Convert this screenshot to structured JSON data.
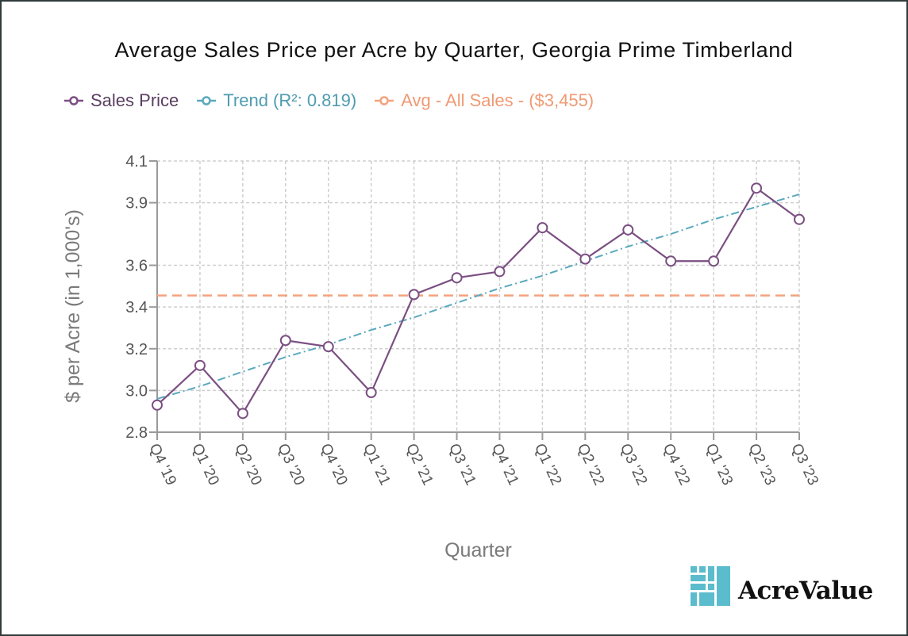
{
  "chart_data": {
    "type": "line",
    "title": "Average Sales Price per Acre by Quarter, Georgia Prime Timberland",
    "xlabel": "Quarter",
    "ylabel": "$ per Acre (in 1,000's)",
    "categories": [
      "Q4 '19",
      "Q1 '20",
      "Q2 '20",
      "Q3 '20",
      "Q4 '20",
      "Q1 '21",
      "Q2 '21",
      "Q3 '21",
      "Q4 '21",
      "Q1 '22",
      "Q2 '22",
      "Q3 '22",
      "Q4 '22",
      "Q1 '23",
      "Q2 '23",
      "Q3 '23"
    ],
    "ylim": [
      2.8,
      4.1
    ],
    "yticks": [
      2.8,
      3.0,
      3.2,
      3.4,
      3.6,
      3.9,
      4.1
    ],
    "ytick_labels": [
      "2.8",
      "3.0",
      "3.2",
      "3.4",
      "3.6",
      "3.9",
      "4.1"
    ],
    "grid": true,
    "series": [
      {
        "name": "Sales Price",
        "color": "#7b4f82",
        "style": "solid-markers",
        "values": [
          2.93,
          3.12,
          2.89,
          3.24,
          3.21,
          2.99,
          3.46,
          3.54,
          3.57,
          3.78,
          3.63,
          3.77,
          3.62,
          3.62,
          3.97,
          3.82
        ]
      },
      {
        "name": "Trend (R²: 0.819)",
        "color": "#5aa9bd",
        "style": "dashdot",
        "values": [
          2.96,
          3.02,
          3.09,
          3.16,
          3.22,
          3.29,
          3.35,
          3.42,
          3.49,
          3.55,
          3.62,
          3.69,
          3.75,
          3.82,
          3.88,
          3.94
        ]
      },
      {
        "name": "Avg - All Sales - ($3,455)",
        "color": "#f4a27e",
        "style": "dashed",
        "values": [
          3.455,
          3.455,
          3.455,
          3.455,
          3.455,
          3.455,
          3.455,
          3.455,
          3.455,
          3.455,
          3.455,
          3.455,
          3.455,
          3.455,
          3.455,
          3.455
        ]
      }
    ],
    "legend": "top-left"
  },
  "brand": {
    "name": "AcreValue",
    "logo_icon": "acrevalue-logo-icon",
    "logo_color": "#5bbccd"
  },
  "colors": {
    "axis": "#9a9a9a",
    "grid": "#cfcfcf",
    "tick_text": "#555555",
    "frame": "#2f3b3b"
  }
}
